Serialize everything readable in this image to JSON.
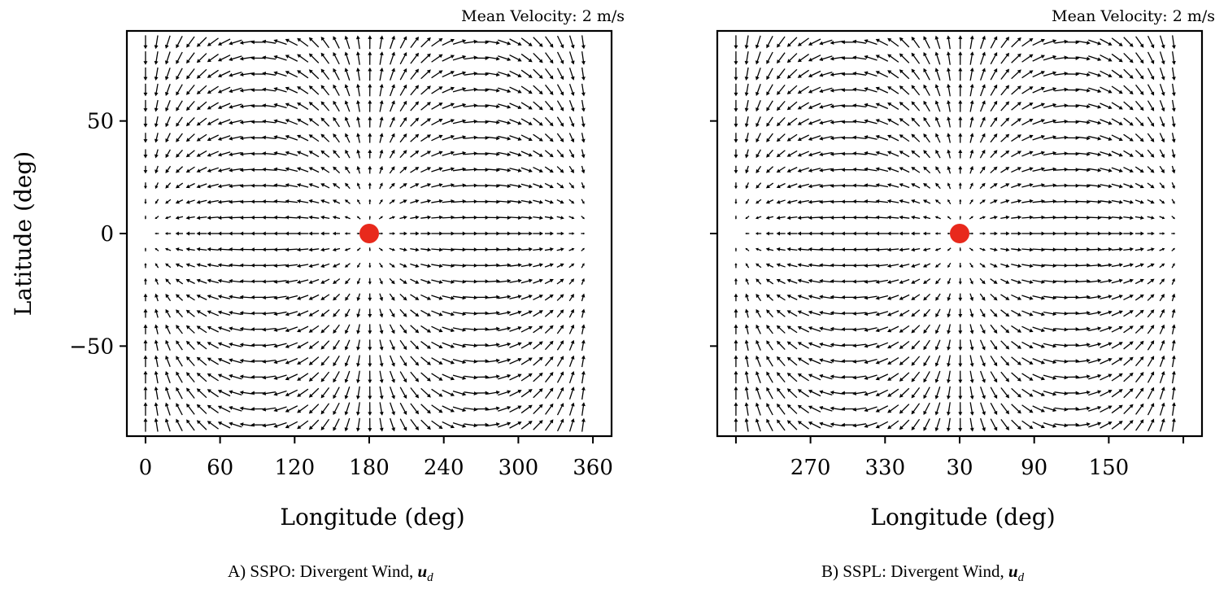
{
  "figure_title": "",
  "chart_data": [
    {
      "type": "quiver",
      "panel": "A",
      "title": "",
      "annotation": "Mean Velocity: 2 m/s",
      "xlabel": "Longitude (deg)",
      "ylabel": "Latitude (deg)",
      "xlim": [
        -15,
        375
      ],
      "ylim": [
        -90,
        90
      ],
      "xticks": [
        0,
        60,
        120,
        180,
        240,
        300,
        360
      ],
      "xtick_labels": [
        "0",
        "60",
        "120",
        "180",
        "240",
        "300",
        "360"
      ],
      "yticks": [
        50,
        0,
        -50
      ],
      "ytick_labels": [
        "50",
        "0",
        "−50"
      ],
      "grid": false,
      "field": {
        "description": "divergent wind radiating outward from substellar point",
        "center_lon": 180,
        "center_lat": 0,
        "lon_range": [
          0,
          352
        ],
        "lat_range": [
          -85,
          85
        ],
        "n_lon": 40,
        "n_lat": 25
      },
      "marker": {
        "lon": 180,
        "lat": 0,
        "color": "#e8291c",
        "label": "substellar point"
      },
      "caption_prefix": "A) SSPO: Divergent Wind, ",
      "caption_math": "u",
      "caption_sub": "d"
    },
    {
      "type": "quiver",
      "panel": "B",
      "title": "",
      "annotation": "Mean Velocity: 2 m/s",
      "xlabel": "Longitude (deg)",
      "ylabel": "",
      "xlim": [
        -15,
        375
      ],
      "ylim": [
        -90,
        90
      ],
      "xticks": [
        0,
        60,
        120,
        180,
        240,
        300,
        360
      ],
      "xtick_labels": [
        "",
        "270",
        "330",
        "30",
        "90",
        "150",
        ""
      ],
      "yticks": [
        50,
        0,
        -50
      ],
      "ytick_labels": [
        "",
        "",
        ""
      ],
      "grid": false,
      "field": {
        "description": "divergent wind radiating outward from substellar point",
        "center_lon": 180,
        "center_lat": 0,
        "lon_range": [
          0,
          352
        ],
        "lat_range": [
          -85,
          85
        ],
        "n_lon": 40,
        "n_lat": 25
      },
      "marker": {
        "lon": 180,
        "lat": 0,
        "color": "#e8291c",
        "label": "substellar point"
      },
      "caption_prefix": "B) SSPL: Divergent Wind, ",
      "caption_math": "u",
      "caption_sub": "d"
    }
  ]
}
